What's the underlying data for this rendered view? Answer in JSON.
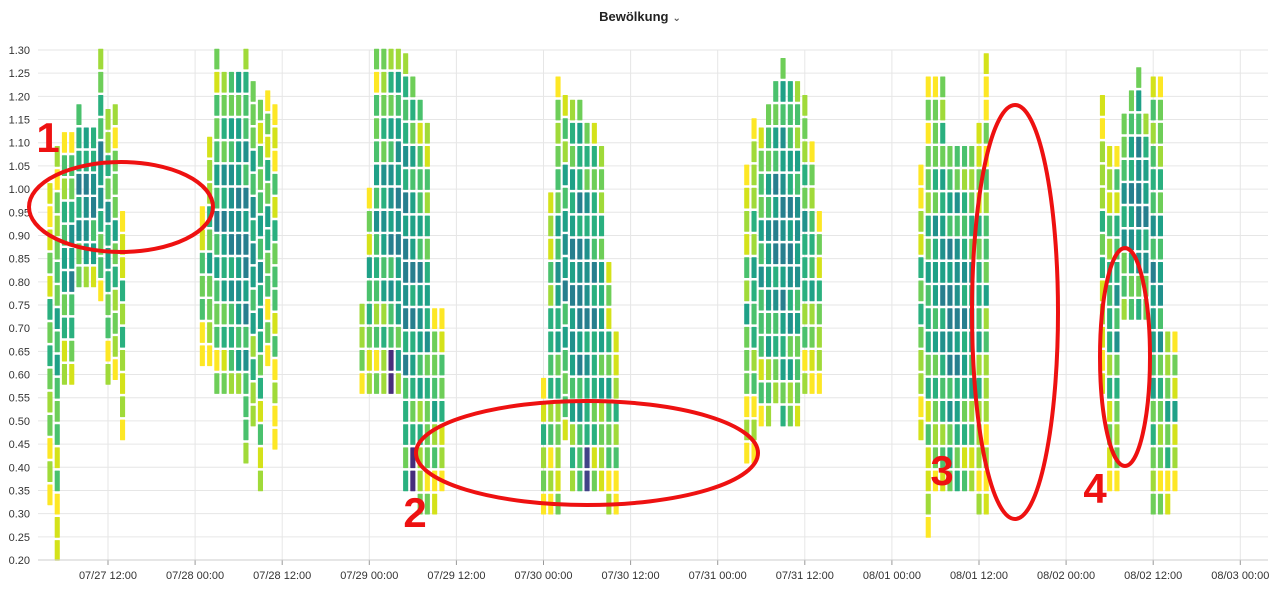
{
  "header": {
    "title": "Bewölkung",
    "chevron": "chevron-down-icon"
  },
  "chart_data": {
    "type": "heatmap",
    "title": "Bewölkung",
    "xlabel": "",
    "ylabel": "",
    "ylim": [
      0.2,
      1.3
    ],
    "y_ticks": [
      "0.20",
      "0.25",
      "0.30",
      "0.35",
      "0.40",
      "0.45",
      "0.50",
      "0.55",
      "0.60",
      "0.65",
      "0.70",
      "0.75",
      "0.80",
      "0.85",
      "0.90",
      "0.95",
      "1.00",
      "1.05",
      "1.10",
      "1.15",
      "1.20",
      "1.25",
      "1.30"
    ],
    "x_ticks": [
      "07/27 12:00",
      "07/28 00:00",
      "07/28 12:00",
      "07/29 00:00",
      "07/29 12:00",
      "07/30 00:00",
      "07/30 12:00",
      "07/31 00:00",
      "07/31 12:00",
      "08/01 00:00",
      "08/01 12:00",
      "08/02 00:00",
      "08/02 12:00",
      "08/03 00:00"
    ],
    "grid": true,
    "colorscale": [
      "#fde725",
      "#d4e21a",
      "#a0da39",
      "#6ece58",
      "#4ac16d",
      "#2ab07f",
      "#1fa187",
      "#21918c",
      "#277f8e",
      "#2e6e8e",
      "#375a8c",
      "#414487",
      "#472d7b",
      "#440154"
    ],
    "days": [
      {
        "start": "07/27 04:00",
        "columns": [
          {
            "top": 0.99,
            "bottom": 0.34,
            "shape": "daytop"
          },
          {
            "top": 1.1,
            "bottom": 0.22,
            "shape": "morning"
          },
          {
            "top": 1.1,
            "bottom": 0.6,
            "shape": "core"
          },
          {
            "top": 1.1,
            "bottom": 0.6,
            "shape": "core"
          },
          {
            "top": 1.18,
            "bottom": 0.81,
            "shape": "core"
          },
          {
            "top": 1.15,
            "bottom": 0.81,
            "shape": "core"
          },
          {
            "top": 1.15,
            "bottom": 0.81,
            "shape": "core"
          },
          {
            "top": 1.28,
            "bottom": 0.78,
            "shape": "core"
          },
          {
            "top": 1.18,
            "bottom": 0.6,
            "shape": "core"
          },
          {
            "top": 1.18,
            "bottom": 0.61,
            "shape": "core"
          },
          {
            "top": 0.94,
            "bottom": 0.48,
            "shape": "evening"
          }
        ]
      },
      {
        "start": "07/28 01:00",
        "columns": [
          {
            "top": 0.94,
            "bottom": 0.64,
            "shape": "core"
          },
          {
            "top": 1.1,
            "bottom": 0.64,
            "shape": "core"
          },
          {
            "top": 1.3,
            "bottom": 0.58,
            "shape": "core"
          },
          {
            "top": 1.25,
            "bottom": 0.58,
            "shape": "core"
          },
          {
            "top": 1.25,
            "bottom": 0.58,
            "shape": "core"
          },
          {
            "top": 1.25,
            "bottom": 0.58,
            "shape": "core"
          },
          {
            "top": 1.3,
            "bottom": 0.43,
            "shape": "core"
          },
          {
            "top": 1.25,
            "bottom": 0.51,
            "shape": "core"
          },
          {
            "top": 1.2,
            "bottom": 0.37,
            "shape": "core"
          },
          {
            "top": 1.2,
            "bottom": 0.64,
            "shape": "core"
          },
          {
            "top": 1.2,
            "bottom": 0.46,
            "shape": "core"
          }
        ]
      },
      {
        "start": "07/28 23:00",
        "columns": [
          {
            "top": 0.74,
            "bottom": 0.58,
            "shape": "core"
          },
          {
            "top": 0.99,
            "bottom": 0.58,
            "shape": "core"
          },
          {
            "top": 1.3,
            "bottom": 0.58,
            "shape": "core"
          },
          {
            "top": 1.3,
            "bottom": 0.58,
            "shape": "core"
          },
          {
            "top": 1.3,
            "bottom": 0.58,
            "shape": "core"
          },
          {
            "top": 1.3,
            "bottom": 0.58,
            "shape": "core"
          },
          {
            "top": 1.3,
            "bottom": 0.37,
            "shape": "core"
          },
          {
            "top": 1.25,
            "bottom": 0.37,
            "shape": "core"
          },
          {
            "top": 1.2,
            "bottom": 0.32,
            "shape": "core"
          },
          {
            "top": 1.15,
            "bottom": 0.32,
            "shape": "core"
          },
          {
            "top": 0.74,
            "bottom": 0.32,
            "shape": "core"
          },
          {
            "top": 0.74,
            "bottom": 0.37,
            "shape": "core"
          }
        ]
      },
      {
        "start": "07/30 00:00",
        "columns": [
          {
            "top": 0.58,
            "bottom": 0.32,
            "shape": "core"
          },
          {
            "top": 0.99,
            "bottom": 0.32,
            "shape": "core"
          },
          {
            "top": 1.25,
            "bottom": 0.32,
            "shape": "core"
          },
          {
            "top": 1.2,
            "bottom": 0.48,
            "shape": "core"
          },
          {
            "top": 1.2,
            "bottom": 0.37,
            "shape": "core"
          },
          {
            "top": 1.2,
            "bottom": 0.37,
            "shape": "core"
          },
          {
            "top": 1.15,
            "bottom": 0.37,
            "shape": "core"
          },
          {
            "top": 1.15,
            "bottom": 0.37,
            "shape": "core"
          },
          {
            "top": 1.1,
            "bottom": 0.37,
            "shape": "core"
          },
          {
            "top": 0.84,
            "bottom": 0.32,
            "shape": "core"
          },
          {
            "top": 0.68,
            "bottom": 0.32,
            "shape": "core"
          }
        ]
      },
      {
        "start": "07/31 04:00",
        "columns": [
          {
            "top": 1.04,
            "bottom": 0.43,
            "shape": "core"
          },
          {
            "top": 1.15,
            "bottom": 0.43,
            "shape": "core"
          },
          {
            "top": 1.15,
            "bottom": 0.51,
            "shape": "core"
          },
          {
            "top": 1.2,
            "bottom": 0.51,
            "shape": "core"
          },
          {
            "top": 1.25,
            "bottom": 0.56,
            "shape": "core"
          },
          {
            "top": 1.3,
            "bottom": 0.51,
            "shape": "core"
          },
          {
            "top": 1.25,
            "bottom": 0.51,
            "shape": "core"
          },
          {
            "top": 1.25,
            "bottom": 0.51,
            "shape": "core"
          },
          {
            "top": 1.2,
            "bottom": 0.58,
            "shape": "core"
          },
          {
            "top": 1.1,
            "bottom": 0.58,
            "shape": "core"
          },
          {
            "top": 0.94,
            "bottom": 0.58,
            "shape": "core"
          }
        ]
      },
      {
        "start": "08/01 04:00",
        "columns": [
          {
            "top": 1.04,
            "bottom": 0.48,
            "shape": "core"
          },
          {
            "top": 1.25,
            "bottom": 0.27,
            "shape": "core"
          },
          {
            "top": 1.25,
            "bottom": 0.37,
            "shape": "core"
          },
          {
            "top": 1.25,
            "bottom": 0.37,
            "shape": "core"
          },
          {
            "top": 1.1,
            "bottom": 0.37,
            "shape": "core"
          },
          {
            "top": 1.1,
            "bottom": 0.37,
            "shape": "core"
          },
          {
            "top": 1.1,
            "bottom": 0.37,
            "shape": "core"
          },
          {
            "top": 1.1,
            "bottom": 0.37,
            "shape": "core"
          },
          {
            "top": 1.15,
            "bottom": 0.32,
            "shape": "core"
          },
          {
            "top": 1.3,
            "bottom": 0.32,
            "shape": "core"
          }
        ]
      },
      {
        "start": "08/02 05:00",
        "columns": [
          {
            "top": 1.2,
            "bottom": 0.58,
            "shape": "core"
          },
          {
            "top": 1.1,
            "bottom": 0.37,
            "shape": "core"
          },
          {
            "top": 1.1,
            "bottom": 0.37,
            "shape": "core"
          },
          {
            "top": 1.15,
            "bottom": 0.74,
            "shape": "core"
          },
          {
            "top": 1.2,
            "bottom": 0.74,
            "shape": "core"
          },
          {
            "top": 1.25,
            "bottom": 0.74,
            "shape": "core"
          },
          {
            "top": 1.15,
            "bottom": 0.74,
            "shape": "core"
          },
          {
            "top": 1.25,
            "bottom": 0.32,
            "shape": "core"
          },
          {
            "top": 1.25,
            "bottom": 0.32,
            "shape": "core"
          },
          {
            "top": 0.68,
            "bottom": 0.32,
            "shape": "core"
          },
          {
            "top": 0.68,
            "bottom": 0.37,
            "shape": "core"
          }
        ]
      }
    ],
    "annotations": [
      {
        "label": "1"
      },
      {
        "label": "2"
      },
      {
        "label": "3"
      },
      {
        "label": "4"
      }
    ]
  }
}
